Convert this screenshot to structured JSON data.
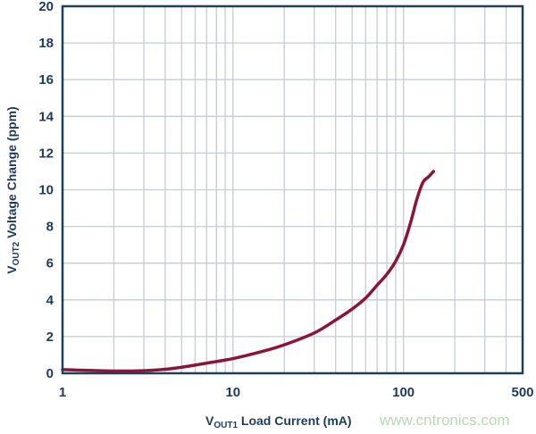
{
  "chart_data": {
    "type": "line",
    "title": "",
    "xlabel": {
      "main": "V",
      "sub": "OUT1",
      "rest": " Load Current (mA)"
    },
    "ylabel": {
      "main": "V",
      "sub": "OUT2",
      "rest": " Voltage Change (ppm)"
    },
    "xscale": "log",
    "xlim": [
      1,
      500
    ],
    "ylim": [
      0,
      20
    ],
    "xticks": [
      1,
      10,
      100,
      500
    ],
    "xtick_labels": [
      "1",
      "10",
      "100",
      "500"
    ],
    "yticks": [
      0,
      2,
      4,
      6,
      8,
      10,
      12,
      14,
      16,
      18,
      20
    ],
    "ytick_labels": [
      "0",
      "2",
      "4",
      "6",
      "8",
      "10",
      "12",
      "14",
      "16",
      "18",
      "20"
    ],
    "grid": true,
    "series": [
      {
        "color": "#8a1538",
        "x": [
          1,
          1.5,
          2,
          3,
          4,
          5,
          7,
          10,
          15,
          20,
          30,
          40,
          50,
          60,
          70,
          80,
          90,
          100,
          110,
          120,
          130,
          140,
          150
        ],
        "y": [
          0.2,
          0.15,
          0.12,
          0.14,
          0.22,
          0.33,
          0.55,
          0.8,
          1.2,
          1.55,
          2.2,
          2.9,
          3.5,
          4.1,
          4.8,
          5.4,
          6.1,
          7.0,
          8.2,
          9.5,
          10.4,
          10.7,
          11.0
        ]
      }
    ],
    "colors": {
      "axis": "#1f3d5c",
      "grid": "#c5ccd4",
      "line": "#8a1538"
    }
  },
  "watermark": "www.cntronics.com"
}
